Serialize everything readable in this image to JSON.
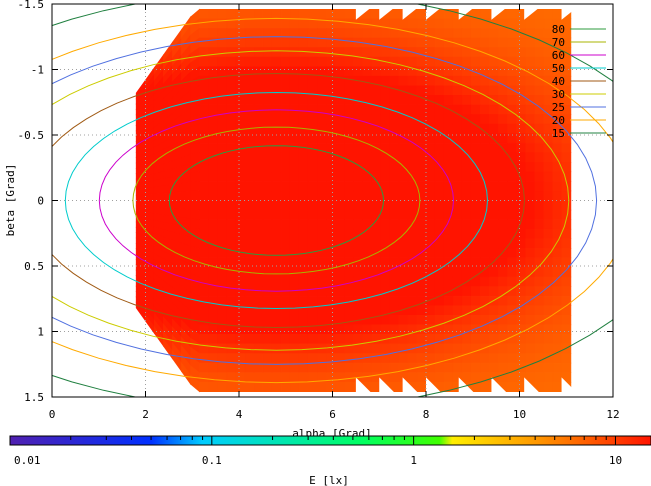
{
  "chart_data": {
    "type": "heatmap",
    "title": "",
    "xlabel": "alpha [Grad]",
    "ylabel": "beta [Grad]",
    "xlim": [
      0,
      12
    ],
    "ylim": [
      1.5,
      -1.5
    ],
    "x_ticks": [
      "0",
      "2",
      "4",
      "6",
      "8",
      "10",
      "12"
    ],
    "y_ticks": [
      "-1.5",
      "-1",
      "-0.5",
      "0",
      "0.5",
      "1",
      "1.5"
    ],
    "grid": true,
    "data_extent": {
      "alpha_range": [
        1.8,
        11.1
      ],
      "beta_range": [
        -1.42,
        1.48
      ]
    },
    "field_peak": {
      "alpha": 4.8,
      "beta": 0.0,
      "value_approx": 85
    },
    "contour_levels": [
      {
        "label": "80",
        "value": 80,
        "color": "#2e9b3e"
      },
      {
        "label": "70",
        "value": 70,
        "color": "#a8b400"
      },
      {
        "label": "60",
        "value": 60,
        "color": "#cc00cc"
      },
      {
        "label": "50",
        "value": 50,
        "color": "#00cccc"
      },
      {
        "label": "40",
        "value": 40,
        "color": "#a05a14"
      },
      {
        "label": "30",
        "value": 30,
        "color": "#cccc00"
      },
      {
        "label": "25",
        "value": 25,
        "color": "#5070e0"
      },
      {
        "label": "20",
        "value": 20,
        "color": "#ffaa00"
      },
      {
        "label": "15",
        "value": 15,
        "color": "#208040"
      }
    ],
    "legend_placement": "top-right",
    "colorbar": {
      "label": "E [lx]",
      "scale": "log",
      "range": [
        0.01,
        15
      ],
      "ticks": [
        "0.01",
        "0.1",
        "1",
        "10"
      ]
    }
  }
}
